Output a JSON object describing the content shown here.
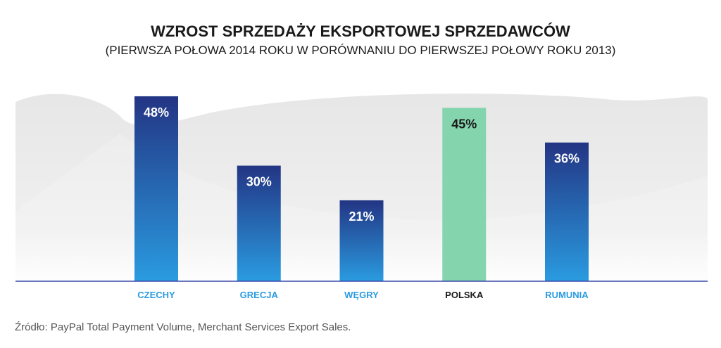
{
  "chart_data": {
    "type": "bar",
    "title": "WZROST SPRZEDAŻY EKSPORTOWEJ SPRZEDAWCÓW",
    "subtitle": "(PIERWSZA POŁOWA 2014 ROKU W PORÓWNANIU DO PIERWSZEJ POŁOWY ROKU 2013)",
    "categories": [
      "CZECHY",
      "GRECJA",
      "WĘGRY",
      "POLSKA",
      "RUMUNIA"
    ],
    "values": [
      48,
      30,
      21,
      45,
      36
    ],
    "data_labels": [
      "48%",
      "30%",
      "21%",
      "45%",
      "36%"
    ],
    "highlight_index": 3,
    "xlabel": "",
    "ylabel": "",
    "ylim": [
      0,
      50
    ],
    "unit": "%",
    "grid": false,
    "legend": "none",
    "colors": {
      "bar_top": "#233584",
      "bar_bottom": "#2a9be0",
      "highlight": "#84d4ae",
      "category_label": "#2a9be0",
      "highlight_label": "#1a1a1a",
      "value_label": "#ffffff",
      "highlight_value_label": "#1a1a1a",
      "axis": "#3a4aa8"
    }
  },
  "source": "Źródło: PayPal Total Payment Volume, Merchant Services Export Sales."
}
